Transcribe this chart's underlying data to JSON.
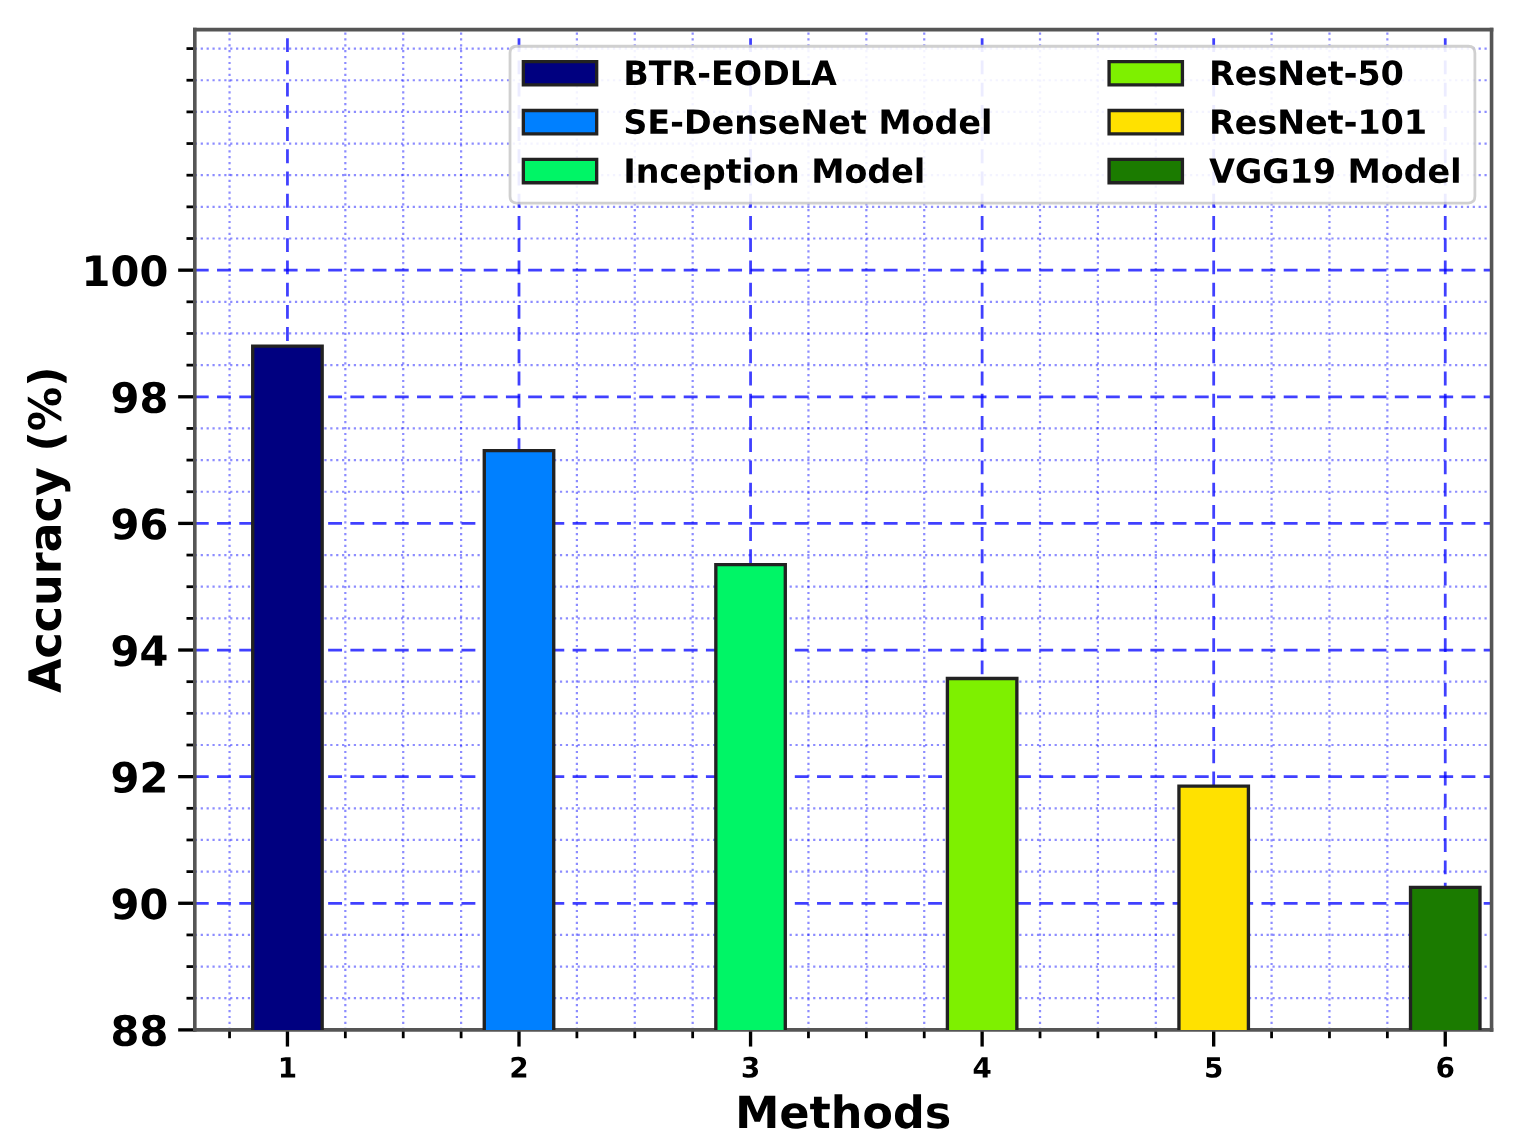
{
  "chart_data": {
    "type": "bar",
    "xlabel": "Methods",
    "ylabel": "Accuracy (%)",
    "series": [
      {
        "name": "BTR-EODLA",
        "color": "#000080",
        "x": [
          1
        ],
        "values": [
          98.8
        ]
      },
      {
        "name": "SE-DenseNet Model",
        "color": "#0080ff",
        "x": [
          2
        ],
        "values": [
          97.15
        ]
      },
      {
        "name": "Inception Model",
        "color": "#00f566",
        "x": [
          3
        ],
        "values": [
          95.35
        ]
      },
      {
        "name": "ResNet-50",
        "color": "#7ef000",
        "x": [
          4
        ],
        "values": [
          93.55
        ]
      },
      {
        "name": "ResNet-101",
        "color": "#ffe100",
        "x": [
          5
        ],
        "values": [
          91.85
        ]
      },
      {
        "name": "VGG19 Model",
        "color": "#1b7b00",
        "x": [
          6
        ],
        "values": [
          90.25
        ]
      }
    ],
    "xlim": [
      0.6,
      6.2
    ],
    "xticks": [
      {
        "value": 0.75,
        "label": null
      },
      1,
      {
        "value": 1.25,
        "label": null
      },
      {
        "value": 1.5,
        "label": null
      },
      {
        "value": 1.75,
        "label": null
      },
      2,
      {
        "value": 2.25,
        "label": null
      },
      {
        "value": 2.5,
        "label": null
      },
      {
        "value": 2.75,
        "label": null
      },
      3,
      {
        "value": 3.25,
        "label": null
      },
      {
        "value": 3.5,
        "label": null
      },
      {
        "value": 3.75,
        "label": null
      },
      4,
      {
        "value": 4.25,
        "label": null
      },
      {
        "value": 4.5,
        "label": null
      },
      {
        "value": 4.75,
        "label": null
      },
      5,
      {
        "value": 5.25,
        "label": null
      },
      {
        "value": 5.5,
        "label": null
      },
      {
        "value": 5.75,
        "label": null
      },
      6
    ],
    "ylim": [
      88,
      103.8
    ],
    "yticks": [
      88,
      {
        "value": 88.5,
        "label": null
      },
      {
        "value": 89,
        "label": null
      },
      {
        "value": 89.5,
        "label": null
      },
      90,
      {
        "value": 90.5,
        "label": null
      },
      {
        "value": 91,
        "label": null
      },
      {
        "value": 91.5,
        "label": null
      },
      92,
      {
        "value": 92.5,
        "label": null
      },
      {
        "value": 93,
        "label": null
      },
      {
        "value": 93.5,
        "label": null
      },
      94,
      {
        "value": 94.5,
        "label": null
      },
      {
        "value": 95,
        "label": null
      },
      {
        "value": 95.5,
        "label": null
      },
      96,
      {
        "value": 96.5,
        "label": null
      },
      {
        "value": 97,
        "label": null
      },
      {
        "value": 97.5,
        "label": null
      },
      98,
      {
        "value": 98.5,
        "label": null
      },
      {
        "value": 99,
        "label": null
      },
      {
        "value": 99.5,
        "label": null
      },
      100,
      {
        "value": 100.5,
        "label": null
      },
      {
        "value": 101,
        "label": null
      },
      {
        "value": 101.5,
        "label": null
      },
      {
        "value": 102,
        "label": null
      },
      {
        "value": 102.5,
        "label": null
      },
      {
        "value": 103,
        "label": null
      },
      {
        "value": 103.5,
        "label": null
      }
    ],
    "grid": true,
    "legend": "top right"
  }
}
